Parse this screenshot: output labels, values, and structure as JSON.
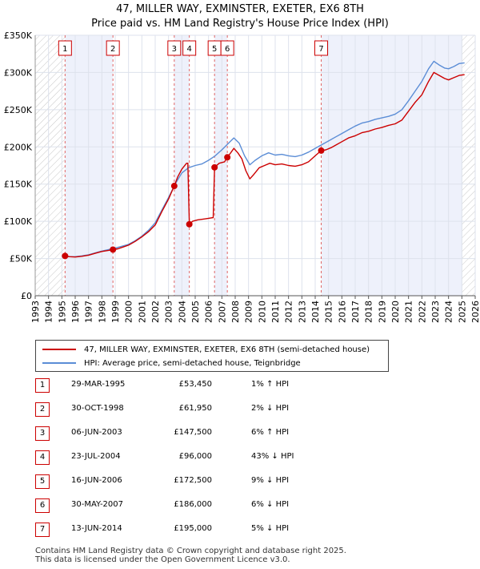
{
  "title_line1": "47, MILLER WAY, EXMINSTER, EXETER, EX6 8TH",
  "title_line2": "Price paid vs. HM Land Registry's House Price Index (HPI)",
  "colors": {
    "property": "#cc0000",
    "hpi": "#5b8dd6",
    "shade": "#eef1fb",
    "marker_border": "#cc0000"
  },
  "legend": {
    "property_label": "47, MILLER WAY, EXMINSTER, EXETER, EX6 8TH (semi-detached house)",
    "hpi_label": "HPI: Average price, semi-detached house, Teignbridge"
  },
  "chart_data": {
    "type": "line",
    "title": "Price paid vs. HM Land Registry's House Price Index (HPI)",
    "xlim": [
      1993,
      2026
    ],
    "ylim": [
      0,
      350000
    ],
    "yticks": [
      0,
      50000,
      100000,
      150000,
      200000,
      250000,
      300000,
      350000
    ],
    "ytick_labels": [
      "£0",
      "£50K",
      "£100K",
      "£150K",
      "£200K",
      "£250K",
      "£300K",
      "£350K"
    ],
    "xticks": [
      "1993",
      "1994",
      "1995",
      "1996",
      "1997",
      "1998",
      "1999",
      "2000",
      "2001",
      "2002",
      "2003",
      "2004",
      "2005",
      "2006",
      "2007",
      "2008",
      "2009",
      "2010",
      "2011",
      "2012",
      "2013",
      "2014",
      "2015",
      "2016",
      "2017",
      "2018",
      "2019",
      "2020",
      "2021",
      "2022",
      "2023",
      "2024",
      "2025",
      "2026"
    ],
    "hatched_before": 1995.24,
    "hatched_after": 2025.0,
    "series": [
      {
        "name": "47, MILLER WAY, EXMINSTER, EXETER, EX6 8TH (semi-detached house)",
        "points": [
          [
            1995.24,
            53450
          ],
          [
            1995.6,
            52500
          ],
          [
            1996.0,
            52000
          ],
          [
            1996.5,
            53000
          ],
          [
            1997.0,
            54500
          ],
          [
            1997.5,
            57000
          ],
          [
            1998.0,
            59500
          ],
          [
            1998.5,
            61000
          ],
          [
            1998.83,
            61950
          ],
          [
            1999.2,
            63000
          ],
          [
            1999.6,
            65500
          ],
          [
            2000.0,
            68000
          ],
          [
            2000.5,
            73000
          ],
          [
            2001.0,
            79000
          ],
          [
            2001.5,
            86000
          ],
          [
            2002.0,
            95000
          ],
          [
            2002.5,
            113000
          ],
          [
            2003.0,
            130000
          ],
          [
            2003.43,
            147500
          ],
          [
            2003.7,
            160000
          ],
          [
            2004.0,
            170000
          ],
          [
            2004.35,
            178000
          ],
          [
            2004.45,
            178000
          ],
          [
            2004.56,
            96000
          ],
          [
            2004.8,
            100000
          ],
          [
            2005.2,
            102000
          ],
          [
            2005.6,
            103000
          ],
          [
            2006.0,
            104000
          ],
          [
            2006.35,
            105000
          ],
          [
            2006.45,
            172500
          ],
          [
            2006.8,
            178000
          ],
          [
            2007.2,
            180000
          ],
          [
            2007.41,
            186000
          ],
          [
            2007.7,
            193000
          ],
          [
            2007.9,
            198000
          ],
          [
            2008.2,
            192000
          ],
          [
            2008.5,
            184000
          ],
          [
            2008.8,
            168000
          ],
          [
            2009.1,
            157000
          ],
          [
            2009.4,
            163000
          ],
          [
            2009.8,
            172000
          ],
          [
            2010.2,
            175000
          ],
          [
            2010.6,
            178000
          ],
          [
            2011.0,
            176000
          ],
          [
            2011.5,
            177000
          ],
          [
            2012.0,
            175000
          ],
          [
            2012.5,
            174000
          ],
          [
            2013.0,
            176000
          ],
          [
            2013.5,
            180000
          ],
          [
            2014.0,
            188000
          ],
          [
            2014.45,
            195000
          ],
          [
            2014.8,
            196000
          ],
          [
            2015.2,
            199000
          ],
          [
            2015.6,
            203000
          ],
          [
            2016.0,
            207000
          ],
          [
            2016.5,
            212000
          ],
          [
            2017.0,
            215000
          ],
          [
            2017.5,
            219000
          ],
          [
            2018.0,
            221000
          ],
          [
            2018.5,
            224000
          ],
          [
            2019.0,
            226000
          ],
          [
            2019.5,
            229000
          ],
          [
            2020.0,
            231000
          ],
          [
            2020.5,
            236000
          ],
          [
            2021.0,
            248000
          ],
          [
            2021.5,
            260000
          ],
          [
            2022.0,
            270000
          ],
          [
            2022.5,
            288000
          ],
          [
            2022.9,
            300000
          ],
          [
            2023.3,
            296000
          ],
          [
            2023.7,
            292000
          ],
          [
            2024.0,
            290000
          ],
          [
            2024.4,
            293000
          ],
          [
            2024.8,
            296000
          ],
          [
            2025.2,
            297000
          ]
        ]
      },
      {
        "name": "HPI: Average price, semi-detached house, Teignbridge",
        "points": [
          [
            1995.0,
            53000
          ],
          [
            1995.5,
            52500
          ],
          [
            1996.0,
            52500
          ],
          [
            1996.5,
            53500
          ],
          [
            1997.0,
            55000
          ],
          [
            1997.5,
            57500
          ],
          [
            1998.0,
            60000
          ],
          [
            1998.5,
            62000
          ],
          [
            1999.0,
            64000
          ],
          [
            1999.5,
            66500
          ],
          [
            2000.0,
            69000
          ],
          [
            2000.5,
            74000
          ],
          [
            2001.0,
            80000
          ],
          [
            2001.5,
            88000
          ],
          [
            2002.0,
            98000
          ],
          [
            2002.5,
            115000
          ],
          [
            2003.0,
            132000
          ],
          [
            2003.5,
            150000
          ],
          [
            2004.0,
            165000
          ],
          [
            2004.5,
            172000
          ],
          [
            2005.0,
            175000
          ],
          [
            2005.5,
            177000
          ],
          [
            2006.0,
            182000
          ],
          [
            2006.5,
            188000
          ],
          [
            2007.0,
            196000
          ],
          [
            2007.5,
            205000
          ],
          [
            2007.9,
            212000
          ],
          [
            2008.3,
            205000
          ],
          [
            2008.7,
            188000
          ],
          [
            2009.1,
            176000
          ],
          [
            2009.5,
            182000
          ],
          [
            2010.0,
            188000
          ],
          [
            2010.5,
            192000
          ],
          [
            2011.0,
            189000
          ],
          [
            2011.5,
            190000
          ],
          [
            2012.0,
            188000
          ],
          [
            2012.5,
            187000
          ],
          [
            2013.0,
            189000
          ],
          [
            2013.5,
            193000
          ],
          [
            2014.0,
            198000
          ],
          [
            2014.5,
            203000
          ],
          [
            2015.0,
            208000
          ],
          [
            2015.5,
            213000
          ],
          [
            2016.0,
            218000
          ],
          [
            2016.5,
            223000
          ],
          [
            2017.0,
            228000
          ],
          [
            2017.5,
            232000
          ],
          [
            2018.0,
            234000
          ],
          [
            2018.5,
            237000
          ],
          [
            2019.0,
            239000
          ],
          [
            2019.5,
            241000
          ],
          [
            2020.0,
            244000
          ],
          [
            2020.5,
            250000
          ],
          [
            2021.0,
            262000
          ],
          [
            2021.5,
            275000
          ],
          [
            2022.0,
            288000
          ],
          [
            2022.5,
            305000
          ],
          [
            2022.9,
            315000
          ],
          [
            2023.3,
            310000
          ],
          [
            2023.7,
            306000
          ],
          [
            2024.0,
            305000
          ],
          [
            2024.4,
            308000
          ],
          [
            2024.8,
            312000
          ],
          [
            2025.2,
            313000
          ]
        ]
      }
    ],
    "sale_markers": [
      {
        "label": "1",
        "x": 1995.24,
        "y": 53450
      },
      {
        "label": "2",
        "x": 1998.83,
        "y": 61950
      },
      {
        "label": "3",
        "x": 2003.43,
        "y": 147500
      },
      {
        "label": "4",
        "x": 2004.56,
        "y": 96000
      },
      {
        "label": "5",
        "x": 2006.45,
        "y": 172500
      },
      {
        "label": "6",
        "x": 2007.41,
        "y": 186000
      },
      {
        "label": "7",
        "x": 2014.45,
        "y": 195000
      }
    ]
  },
  "sales": [
    {
      "num": "1",
      "date": "29-MAR-1995",
      "price": "£53,450",
      "hpi": "1% ↑ HPI"
    },
    {
      "num": "2",
      "date": "30-OCT-1998",
      "price": "£61,950",
      "hpi": "2% ↓ HPI"
    },
    {
      "num": "3",
      "date": "06-JUN-2003",
      "price": "£147,500",
      "hpi": "6% ↑ HPI"
    },
    {
      "num": "4",
      "date": "23-JUL-2004",
      "price": "£96,000",
      "hpi": "43% ↓ HPI"
    },
    {
      "num": "5",
      "date": "16-JUN-2006",
      "price": "£172,500",
      "hpi": "9% ↓ HPI"
    },
    {
      "num": "6",
      "date": "30-MAY-2007",
      "price": "£186,000",
      "hpi": "6% ↓ HPI"
    },
    {
      "num": "7",
      "date": "13-JUN-2014",
      "price": "£195,000",
      "hpi": "5% ↓ HPI"
    }
  ],
  "footer": {
    "line1": "Contains HM Land Registry data © Crown copyright and database right 2025.",
    "line2": "This data is licensed under the Open Government Licence v3.0."
  }
}
